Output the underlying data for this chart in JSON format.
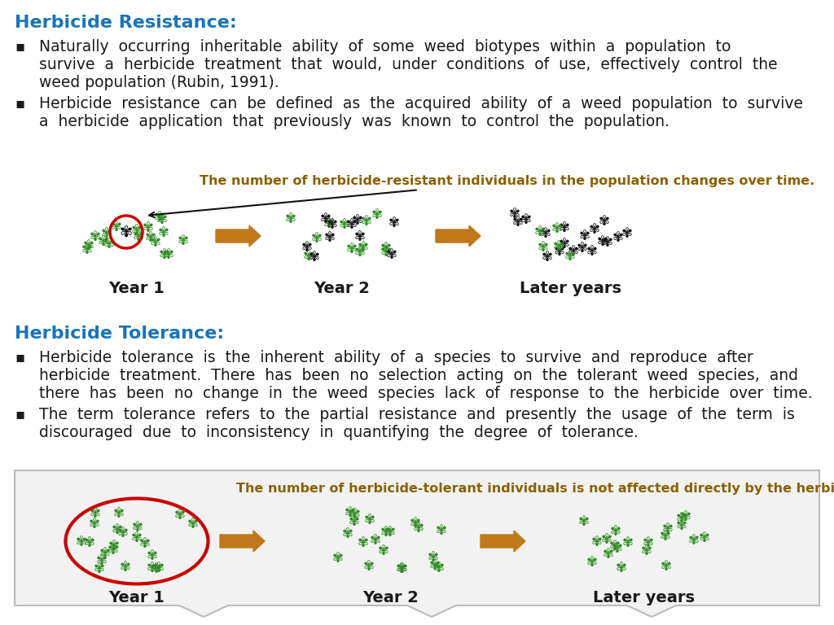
{
  "bg_color": "#ffffff",
  "title1": "Herbicide Resistance:",
  "title1_color": "#1875BC",
  "title2": "Herbicide Tolerance:",
  "title2_color": "#1875BC",
  "b1l1": "Naturally  occurring  inheritable  ability  of  some  weed  biotypes  within  a  population  to",
  "b1l2": "survive  a  herbicide  treatment  that  would,  under  conditions  of  use,  effectively  control  the",
  "b1l3": "weed population (Rubin, 1991).",
  "b2l1": "Herbicide  resistance  can  be  defined  as  the  acquired  ability  of  a  weed  population  to  survive",
  "b2l2": "a  herbicide  application  that  previously  was  known  to  control  the  population.",
  "res_cap": "The number of herbicide-resistant individuals in the population changes over time.",
  "tol_cap": "The number of herbicide-tolerant individuals is not affected directly by the herbicide.",
  "year1": "Year 1",
  "year2": "Year 2",
  "later": "Later years",
  "tb1l1": "Herbicide  tolerance  is  the  inherent  ability  of  a  species  to  survive  and  reproduce  after",
  "tb1l2": "herbicide  treatment.  There  has  been  no  selection  acting  on  the  tolerant  weed  species,  and",
  "tb1l3": "there  has  been  no  change  in  the  weed  species  lack  of  response  to  the  herbicide  over  time.",
  "tb2l1": "The  term  tolerance  refers  to  the  partial  resistance  and  presently  the  usage  of  the  term  is",
  "tb2l2": "discouraged  due  to  inconsistency  in  quantifying  the  degree  of  tolerance.",
  "arrow_color": "#C07818",
  "text_color": "#1a1a1a",
  "caption_color": "#8B6000",
  "red_color": "#CC0000",
  "green": "#2E8B22",
  "dark": "#111111",
  "box_bg": "#f2f2f2",
  "box_edge": "#bbbbbb"
}
